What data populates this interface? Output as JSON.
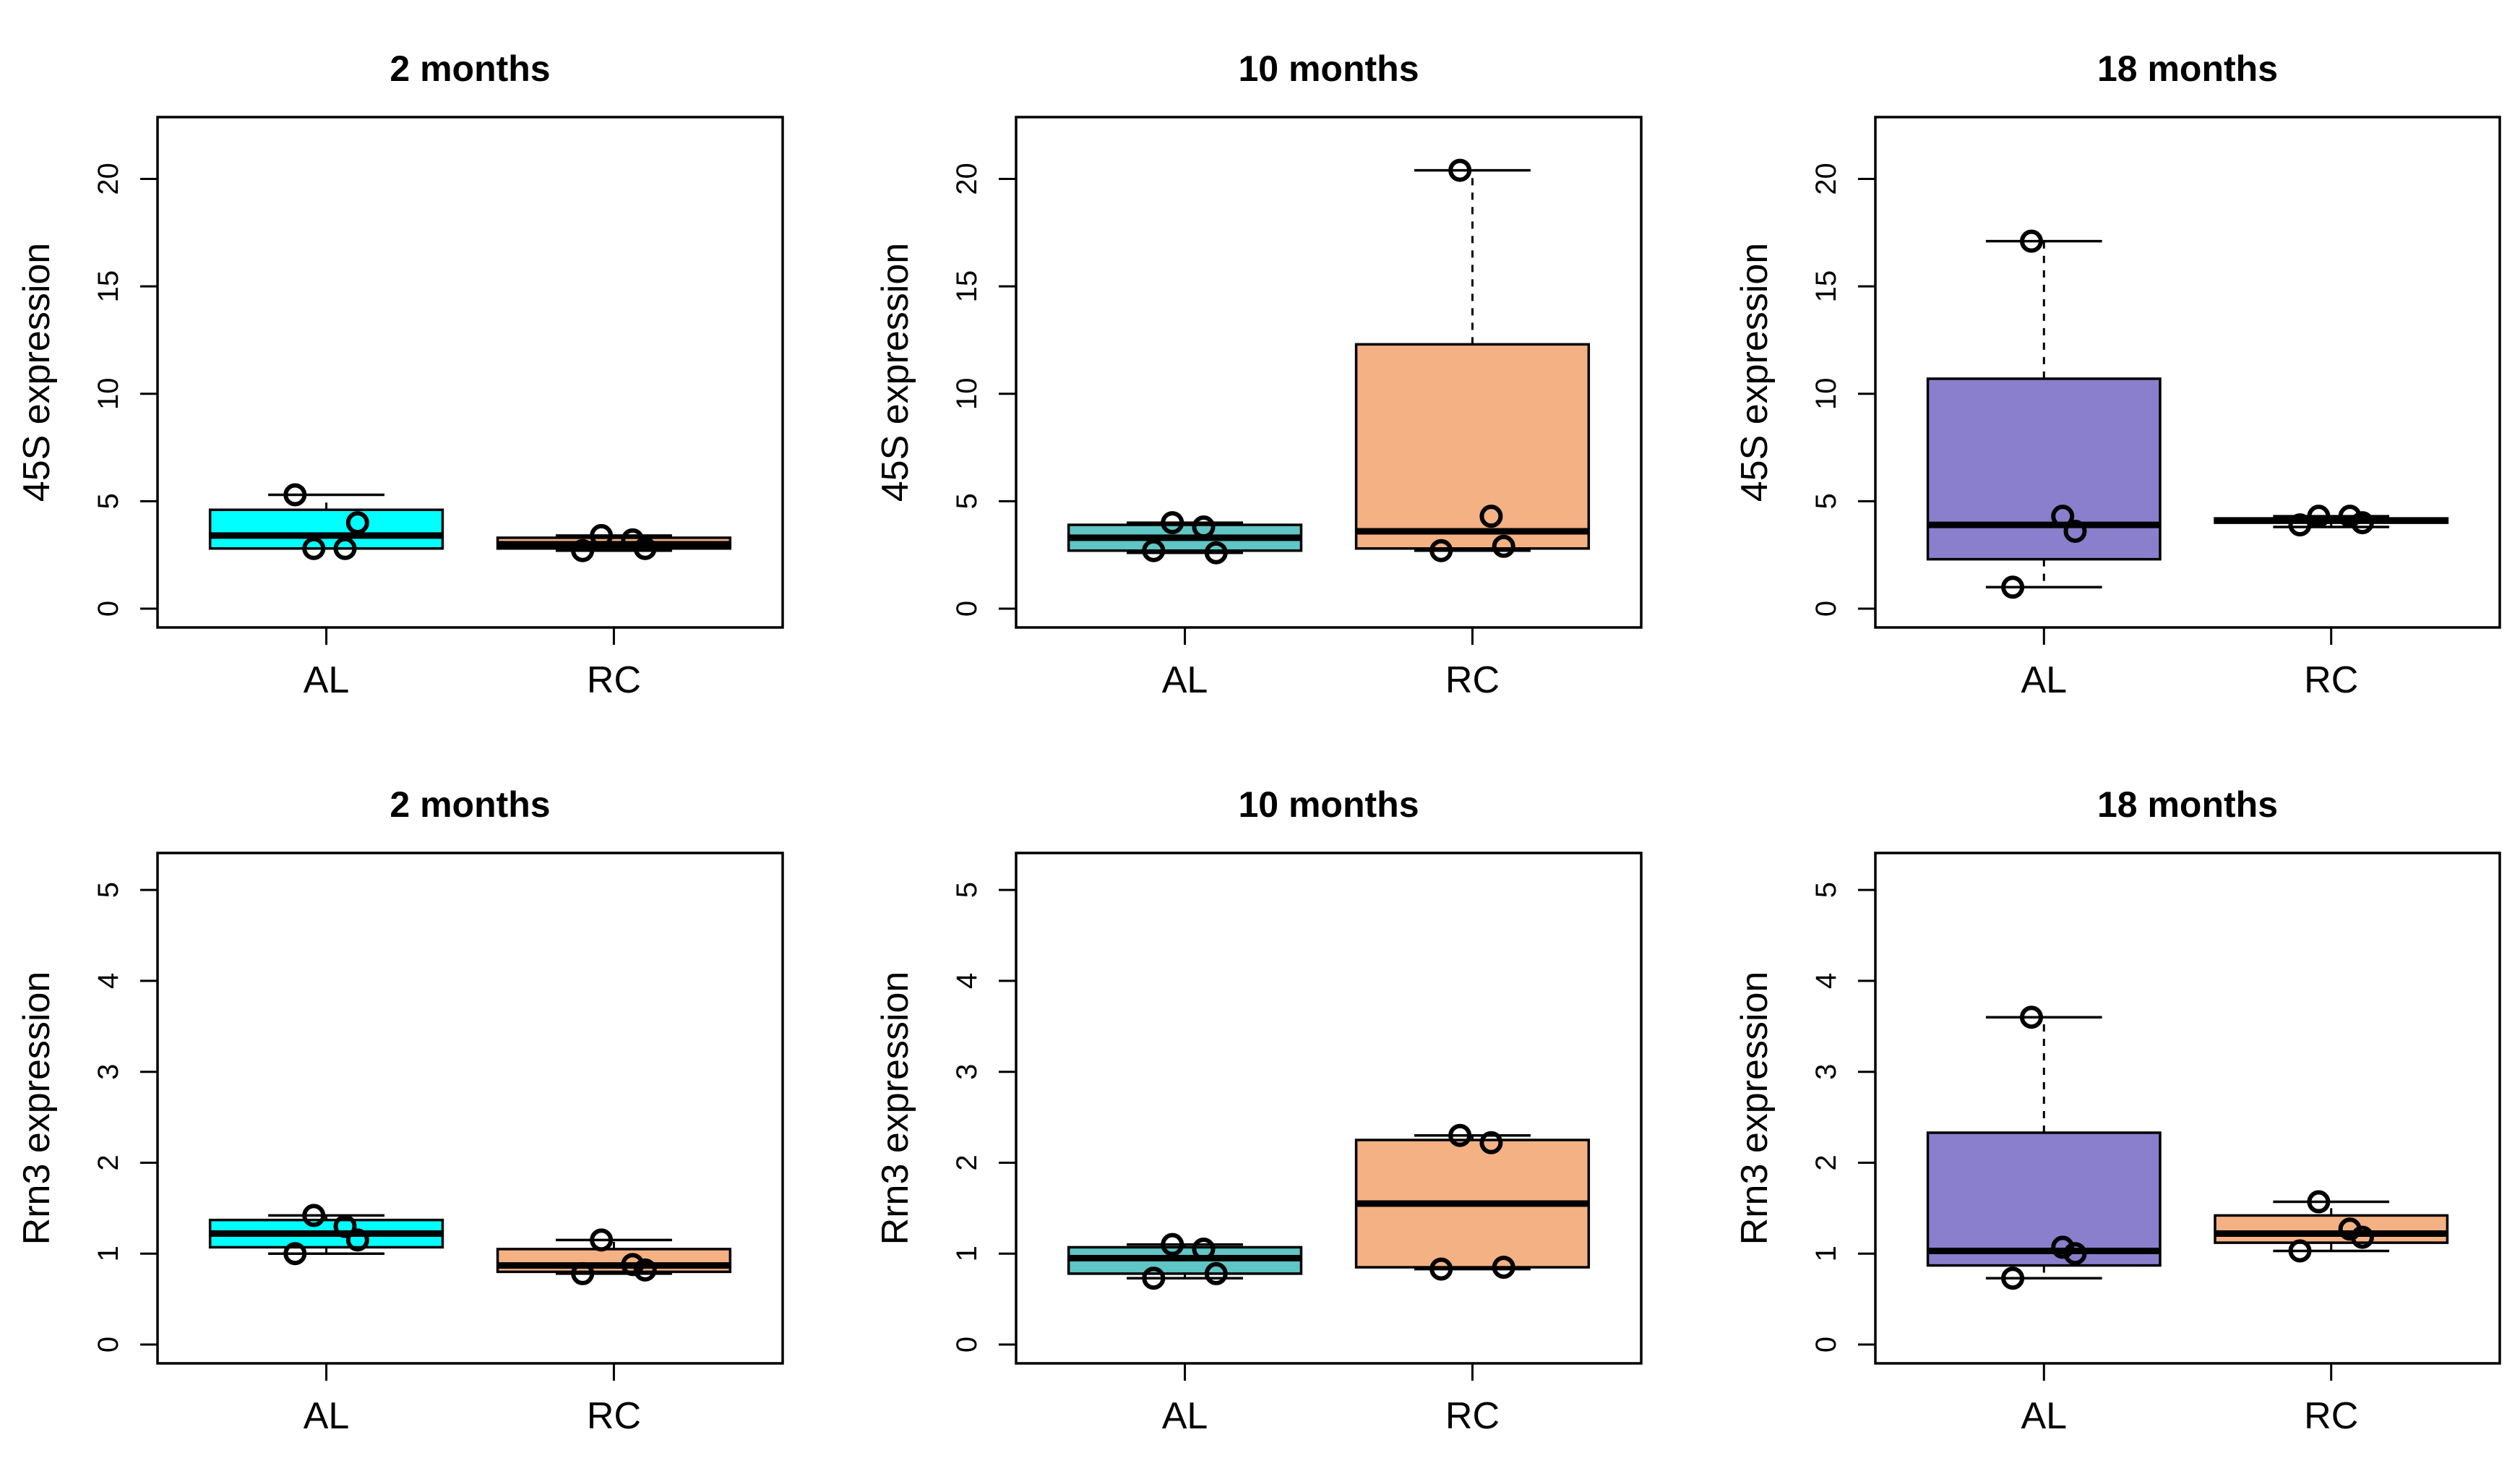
{
  "chart_data": [
    {
      "type": "box",
      "title": "2 months",
      "ylabel": "45S expression",
      "ylim": [
        0,
        22
      ],
      "yticks": [
        0,
        5,
        10,
        15,
        20
      ],
      "categories": [
        "AL",
        "RC"
      ],
      "boxes": [
        {
          "category": "AL",
          "color": "#00FFFF",
          "q1": 2.8,
          "median": 3.4,
          "q3": 4.6,
          "whisker_low": 2.8,
          "whisker_high": 5.3,
          "points": [
            2.8,
            2.8,
            4.0,
            5.3
          ]
        },
        {
          "category": "RC",
          "color": "#F4B183",
          "q1": 2.8,
          "median": 3.0,
          "q3": 3.3,
          "whisker_low": 2.7,
          "whisker_high": 3.4,
          "points": [
            3.4,
            3.2,
            2.8,
            2.7
          ]
        }
      ]
    },
    {
      "type": "box",
      "title": "10 months",
      "ylabel": "45S expression",
      "ylim": [
        0,
        22
      ],
      "yticks": [
        0,
        5,
        10,
        15,
        20
      ],
      "categories": [
        "AL",
        "RC"
      ],
      "boxes": [
        {
          "category": "AL",
          "color": "#5FC5C5",
          "q1": 2.7,
          "median": 3.3,
          "q3": 3.9,
          "whisker_low": 2.6,
          "whisker_high": 4.0,
          "points": [
            4.0,
            3.8,
            2.6,
            2.7
          ]
        },
        {
          "category": "RC",
          "color": "#F4B183",
          "q1": 2.8,
          "median": 3.6,
          "q3": 12.3,
          "whisker_low": 2.7,
          "whisker_high": 20.4,
          "points": [
            20.4,
            4.3,
            2.9,
            2.7
          ]
        }
      ]
    },
    {
      "type": "box",
      "title": "18 months",
      "ylabel": "45S expression",
      "ylim": [
        0,
        22
      ],
      "yticks": [
        0,
        5,
        10,
        15,
        20
      ],
      "categories": [
        "AL",
        "RC"
      ],
      "boxes": [
        {
          "category": "AL",
          "color": "#8A7FCC",
          "q1": 2.3,
          "median": 3.9,
          "q3": 10.7,
          "whisker_low": 1.0,
          "whisker_high": 17.1,
          "points": [
            17.1,
            4.3,
            3.6,
            1.0
          ]
        },
        {
          "category": "RC",
          "color": "#F4B183",
          "q1": 4.0,
          "median": 4.1,
          "q3": 4.2,
          "whisker_low": 3.8,
          "whisker_high": 4.3,
          "points": [
            4.3,
            4.3,
            4.0,
            3.9
          ]
        }
      ]
    },
    {
      "type": "box",
      "title": "2 months",
      "ylabel": "Rrn3 expression",
      "ylim": [
        0,
        5.2
      ],
      "yticks": [
        0,
        1,
        2,
        3,
        4,
        5
      ],
      "categories": [
        "AL",
        "RC"
      ],
      "boxes": [
        {
          "category": "AL",
          "color": "#00FFFF",
          "q1": 1.07,
          "median": 1.22,
          "q3": 1.37,
          "whisker_low": 1.0,
          "whisker_high": 1.42,
          "points": [
            1.42,
            1.3,
            1.15,
            1.0
          ]
        },
        {
          "category": "RC",
          "color": "#F4B183",
          "q1": 0.8,
          "median": 0.87,
          "q3": 1.05,
          "whisker_low": 0.78,
          "whisker_high": 1.15,
          "points": [
            1.15,
            0.88,
            0.82,
            0.78
          ]
        }
      ]
    },
    {
      "type": "box",
      "title": "10 months",
      "ylabel": "Rrn3 expression",
      "ylim": [
        0,
        5.2
      ],
      "yticks": [
        0,
        1,
        2,
        3,
        4,
        5
      ],
      "categories": [
        "AL",
        "RC"
      ],
      "boxes": [
        {
          "category": "AL",
          "color": "#5FC5C5",
          "q1": 0.78,
          "median": 0.95,
          "q3": 1.07,
          "whisker_low": 0.73,
          "whisker_high": 1.1,
          "points": [
            1.1,
            1.05,
            0.78,
            0.73
          ]
        },
        {
          "category": "RC",
          "color": "#F4B183",
          "q1": 0.85,
          "median": 1.55,
          "q3": 2.25,
          "whisker_low": 0.83,
          "whisker_high": 2.3,
          "points": [
            2.3,
            2.22,
            0.85,
            0.83
          ]
        }
      ]
    },
    {
      "type": "box",
      "title": "18 months",
      "ylabel": "Rrn3 expression",
      "ylim": [
        0,
        5.2
      ],
      "yticks": [
        0,
        1,
        2,
        3,
        4,
        5
      ],
      "categories": [
        "AL",
        "RC"
      ],
      "boxes": [
        {
          "category": "AL",
          "color": "#8A7FCC",
          "q1": 0.87,
          "median": 1.03,
          "q3": 2.33,
          "whisker_low": 0.73,
          "whisker_high": 3.6,
          "points": [
            3.6,
            1.07,
            1.0,
            0.73
          ]
        },
        {
          "category": "RC",
          "color": "#F4B183",
          "q1": 1.12,
          "median": 1.22,
          "q3": 1.42,
          "whisker_low": 1.03,
          "whisker_high": 1.57,
          "points": [
            1.57,
            1.27,
            1.18,
            1.03
          ]
        }
      ]
    }
  ]
}
